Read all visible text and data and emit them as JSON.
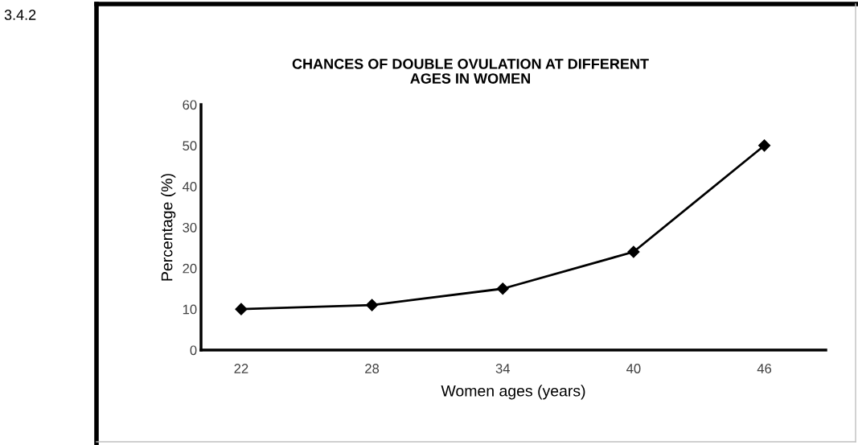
{
  "chart_data": {
    "type": "line",
    "title": "CHANCES OF DOUBLE OVULATION AT DIFFERENT\nAGES IN WOMEN",
    "xlabel": "Women ages (years)",
    "ylabel": "Percentage (%)",
    "categories": [
      "22",
      "28",
      "34",
      "40",
      "46"
    ],
    "series": [
      {
        "color": "#000000",
        "values": [
          10,
          11,
          15,
          24,
          50
        ]
      }
    ],
    "ylim": [
      0,
      60
    ],
    "yticks": [
      0,
      10,
      20,
      30,
      40,
      50,
      60
    ],
    "marker": "diamond",
    "line_style": "solid",
    "annotations": [
      "3.4.2"
    ]
  }
}
